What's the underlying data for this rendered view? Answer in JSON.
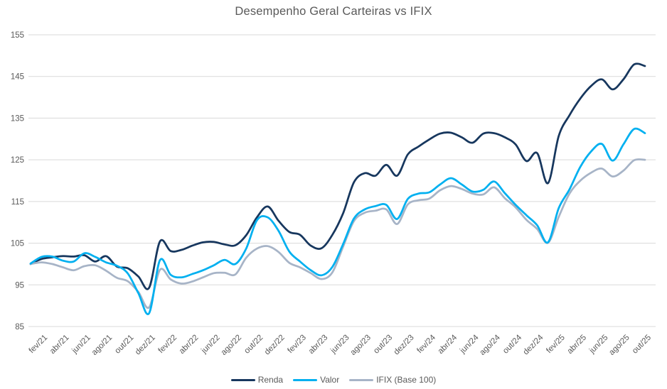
{
  "title": "Desempenho Geral Carteiras vs IFIX",
  "chart_data": {
    "type": "line",
    "smooth": true,
    "grid": "horizontal",
    "legend_position": "bottom",
    "ylim": [
      85,
      155
    ],
    "y_ticks": [
      85,
      95,
      105,
      115,
      125,
      135,
      145,
      155
    ],
    "x_tick_every": 2,
    "x_first_tick_index": 1,
    "x": [
      "jan/21",
      "fev/21",
      "mar/21",
      "abr/21",
      "mai/21",
      "jun/21",
      "jul/21",
      "ago/21",
      "set/21",
      "out/21",
      "nov/21",
      "dez/21",
      "jan/22",
      "fev/22",
      "mar/22",
      "abr/22",
      "mai/22",
      "jun/22",
      "jul/22",
      "ago/22",
      "set/22",
      "out/22",
      "nov/22",
      "dez/22",
      "jan/23",
      "fev/23",
      "mar/23",
      "abr/23",
      "mai/23",
      "jun/23",
      "jul/23",
      "ago/23",
      "set/23",
      "out/23",
      "nov/23",
      "dez/23",
      "jan/24",
      "fev/24",
      "mar/24",
      "abr/24",
      "mai/24",
      "jun/24",
      "jul/24",
      "ago/24",
      "set/24",
      "out/24",
      "nov/24",
      "dez/24",
      "jan/25",
      "fev/25",
      "mar/25",
      "abr/25",
      "mai/25",
      "jun/25",
      "jul/25",
      "ago/25",
      "set/25",
      "out/25"
    ],
    "series": [
      {
        "name": "Renda",
        "color": "#17375E",
        "values": [
          100.0,
          101.2,
          101.6,
          101.9,
          101.8,
          102.1,
          100.6,
          101.9,
          99.4,
          99.0,
          97.0,
          94.3,
          105.4,
          103.1,
          103.4,
          104.4,
          105.2,
          105.3,
          104.7,
          104.5,
          106.9,
          111.2,
          113.8,
          110.4,
          107.7,
          107.0,
          104.4,
          103.8,
          107.0,
          112.2,
          119.6,
          121.8,
          121.2,
          123.8,
          121.2,
          126.3,
          128.2,
          129.9,
          131.3,
          131.5,
          130.4,
          129.1,
          131.3,
          131.4,
          130.4,
          128.7,
          124.7,
          126.6,
          119.4,
          130.7,
          135.7,
          139.7,
          142.7,
          144.3,
          141.9,
          144.3,
          147.9,
          147.5
        ]
      },
      {
        "name": "Valor",
        "color": "#00B0F0",
        "values": [
          100.1,
          101.7,
          101.8,
          100.8,
          100.6,
          102.6,
          101.7,
          100.4,
          99.6,
          97.8,
          93.0,
          88.2,
          100.9,
          97.4,
          96.8,
          97.6,
          98.5,
          99.7,
          101.0,
          100.0,
          103.7,
          110.5,
          111.2,
          108.0,
          103.0,
          100.6,
          98.5,
          97.3,
          99.3,
          104.8,
          110.9,
          113.1,
          113.9,
          114.2,
          110.8,
          115.6,
          116.9,
          117.2,
          119.1,
          120.6,
          119.1,
          117.4,
          117.8,
          119.8,
          117.0,
          114.2,
          111.7,
          109.3,
          105.2,
          113.4,
          117.9,
          123.3,
          127.0,
          128.8,
          124.8,
          128.7,
          132.4,
          131.4
        ]
      },
      {
        "name": "IFIX (Base 100)",
        "color": "#A7B4C7",
        "values": [
          100.0,
          100.4,
          100.0,
          99.2,
          98.5,
          99.5,
          99.7,
          98.4,
          96.7,
          95.9,
          93.3,
          89.6,
          98.6,
          96.3,
          95.3,
          95.8,
          96.8,
          97.8,
          97.9,
          97.5,
          101.5,
          103.7,
          104.3,
          102.9,
          100.3,
          99.2,
          97.8,
          96.4,
          98.0,
          104.2,
          110.3,
          112.3,
          112.8,
          113.1,
          109.6,
          114.3,
          115.3,
          115.7,
          117.7,
          118.7,
          118.0,
          116.9,
          116.7,
          118.4,
          115.8,
          113.6,
          110.6,
          108.4,
          105.1,
          111.3,
          116.9,
          120.0,
          121.9,
          122.9,
          121.0,
          122.4,
          124.9,
          125.0
        ]
      }
    ],
    "styles": {
      "gridline_color": "#D9D9D9",
      "tick_label_color": "#595959",
      "title_color": "#595959",
      "background": "#FFFFFF"
    }
  }
}
